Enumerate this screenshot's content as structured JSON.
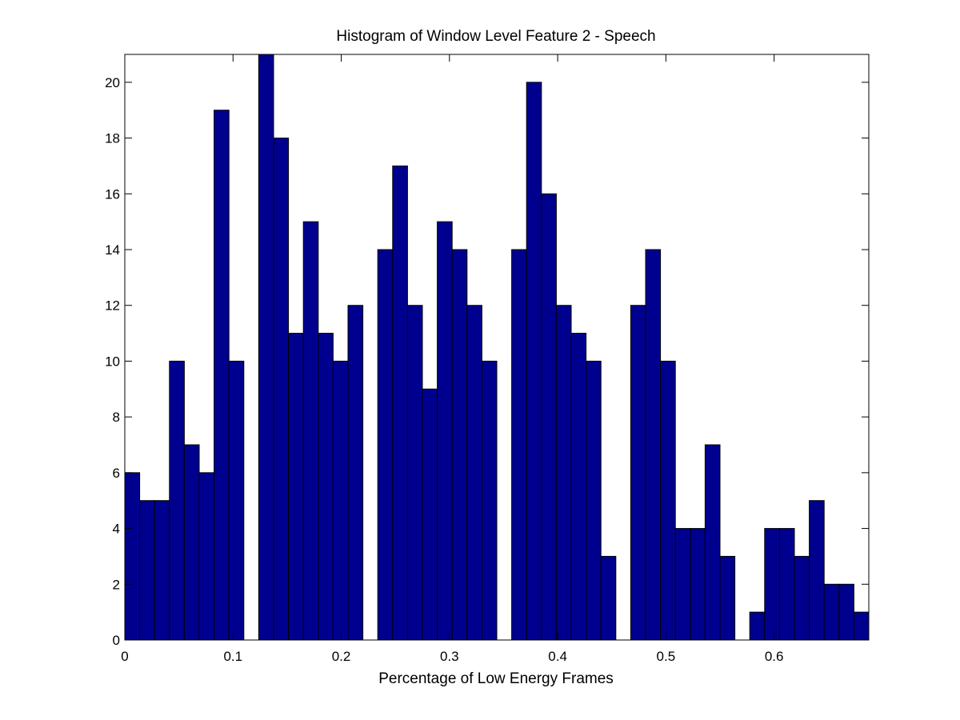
{
  "chart_data": {
    "type": "bar",
    "title": "Histogram of Window Level Feature 2 - Speech",
    "xlabel": "Percentage of Low Energy Frames",
    "ylabel": "",
    "xlim": [
      0,
      0.6875
    ],
    "ylim": [
      0,
      21
    ],
    "bin_width": 0.01375,
    "x_ticks": [
      0,
      0.1,
      0.2,
      0.3,
      0.4,
      0.5,
      0.6
    ],
    "x_tick_labels": [
      "0",
      "0.1",
      "0.2",
      "0.3",
      "0.4",
      "0.5",
      "0.6"
    ],
    "y_ticks": [
      0,
      2,
      4,
      6,
      8,
      10,
      12,
      14,
      16,
      18,
      20
    ],
    "y_tick_labels": [
      "0",
      "2",
      "4",
      "6",
      "8",
      "10",
      "12",
      "14",
      "16",
      "18",
      "20"
    ],
    "grid": false,
    "bar_color": "#00008F",
    "values": [
      6,
      5,
      5,
      10,
      7,
      6,
      19,
      10,
      0,
      21,
      18,
      11,
      15,
      11,
      10,
      12,
      0,
      14,
      17,
      12,
      9,
      15,
      14,
      12,
      10,
      0,
      14,
      20,
      16,
      12,
      11,
      10,
      3,
      0,
      12,
      14,
      10,
      4,
      4,
      7,
      3,
      0,
      1,
      4,
      4,
      3,
      5,
      2,
      2,
      1
    ]
  }
}
